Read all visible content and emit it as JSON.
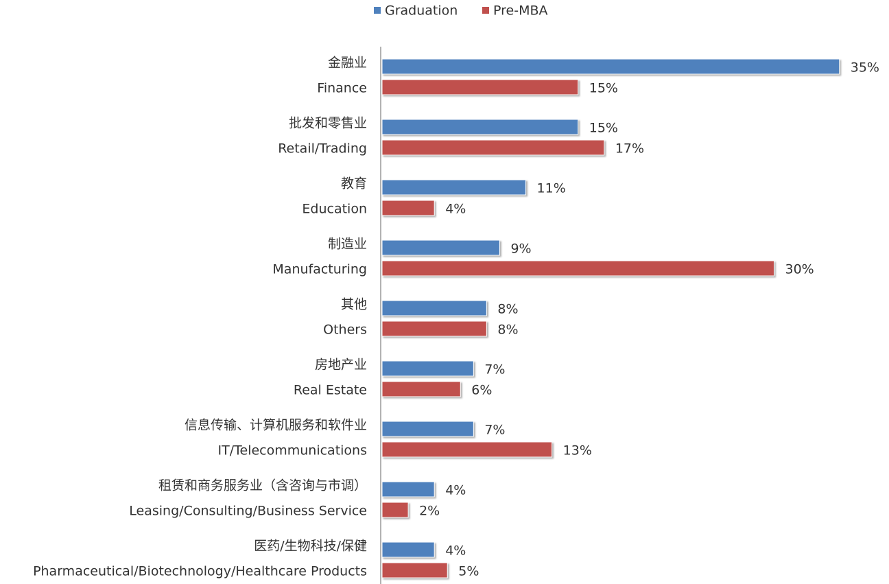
{
  "chart_data": {
    "type": "hbar",
    "categories": [
      [
        "金融业",
        "Finance"
      ],
      [
        "批发和零售业",
        "Retail/Trading"
      ],
      [
        "教育",
        "Education"
      ],
      [
        "制造业",
        "Manufacturing"
      ],
      [
        "其他",
        "Others"
      ],
      [
        "房地产业",
        "Real Estate"
      ],
      [
        "信息传输、计算机服务和软件业",
        "IT/Telecommunications"
      ],
      [
        "租赁和商务服务业（含咨询与市调）",
        "Leasing/Consulting/Business Service"
      ],
      [
        "医药/生物科技/保健",
        "Pharmaceutical/Biotechnology/Healthcare Products"
      ]
    ],
    "series": [
      {
        "name": "Graduation",
        "color": "#4f81bd",
        "values": [
          35,
          15,
          11,
          9,
          8,
          7,
          7,
          4,
          4
        ],
        "value_labels": [
          "35%",
          "15%",
          "11%",
          "9%",
          "8%",
          "7%",
          "7%",
          "4%",
          "4%"
        ]
      },
      {
        "name": "Pre-MBA",
        "color": "#c0504d",
        "values": [
          15,
          17,
          4,
          30,
          8,
          6,
          13,
          2,
          5
        ],
        "value_labels": [
          "15%",
          "17%",
          "4%",
          "30%",
          "8%",
          "6%",
          "13%",
          "2%",
          "5%"
        ]
      }
    ],
    "legend": "top"
  }
}
